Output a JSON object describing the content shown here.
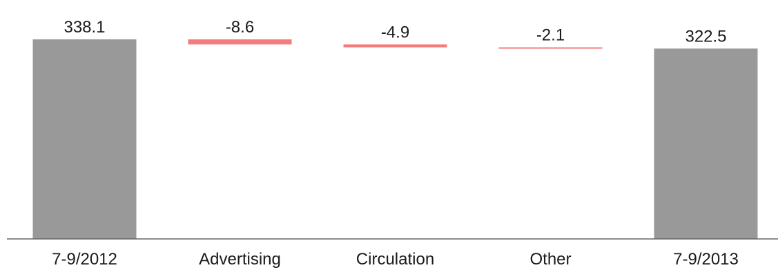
{
  "chart_data": {
    "type": "bar",
    "subtype": "waterfall",
    "title": "",
    "xlabel": "",
    "ylabel": "",
    "categories": [
      "7-9/2012",
      "Advertising",
      "Circulation",
      "Other",
      "7-9/2013"
    ],
    "values": [
      338.1,
      -8.6,
      -4.9,
      -2.1,
      322.5
    ],
    "bar_kinds": [
      "total",
      "delta",
      "delta",
      "delta",
      "total"
    ],
    "data_labels": [
      "338.1",
      "-8.6",
      "-4.9",
      "-2.1",
      "322.5"
    ],
    "grid": false,
    "legend": "none",
    "colors": {
      "total": "#999999",
      "negative": "#f47c7c",
      "axis": "#666666",
      "text": "#1a1a1a"
    }
  }
}
